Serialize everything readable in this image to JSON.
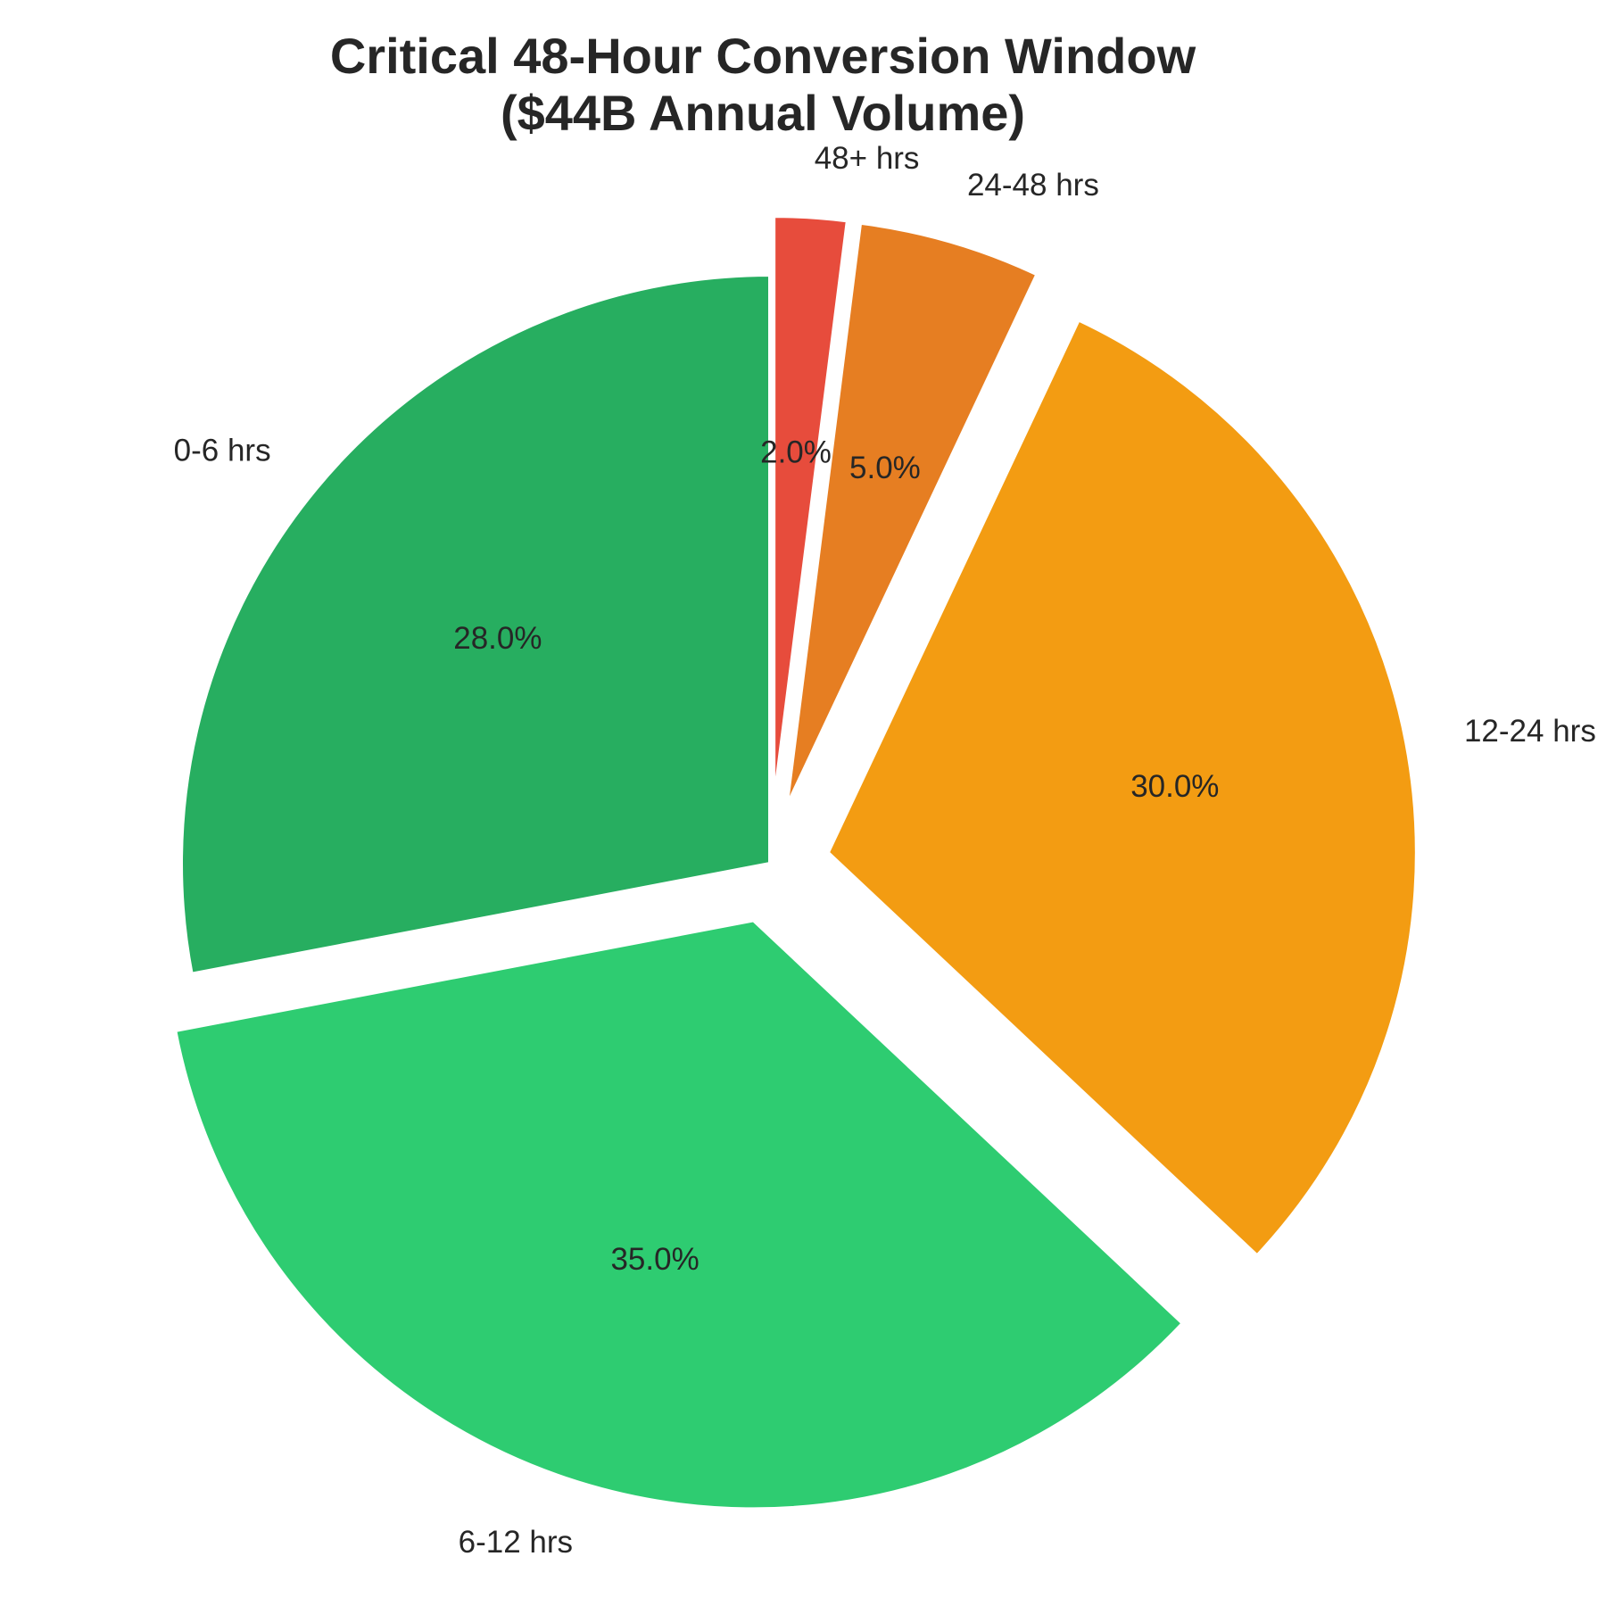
{
  "chart_data": {
    "type": "pie",
    "title_lines": [
      "Critical 48-Hour Conversion Window",
      "($44B Annual Volume)"
    ],
    "start_angle": "top",
    "direction": "counterclockwise",
    "slices": [
      {
        "label": "0-6 hrs",
        "value": 28.0,
        "pct_label": "28.0%",
        "color": "#27ae60",
        "exploded": false
      },
      {
        "label": "6-12 hrs",
        "value": 35.0,
        "pct_label": "35.0%",
        "color": "#2ecc71",
        "exploded": true
      },
      {
        "label": "12-24 hrs",
        "value": 30.0,
        "pct_label": "30.0%",
        "color": "#f39c12",
        "exploded": true
      },
      {
        "label": "24-48 hrs",
        "value": 5.0,
        "pct_label": "5.0%",
        "color": "#e67e22",
        "exploded": true
      },
      {
        "label": "48+ hrs",
        "value": 2.0,
        "pct_label": "2.0%",
        "color": "#e74c3c",
        "exploded": true
      }
    ]
  }
}
